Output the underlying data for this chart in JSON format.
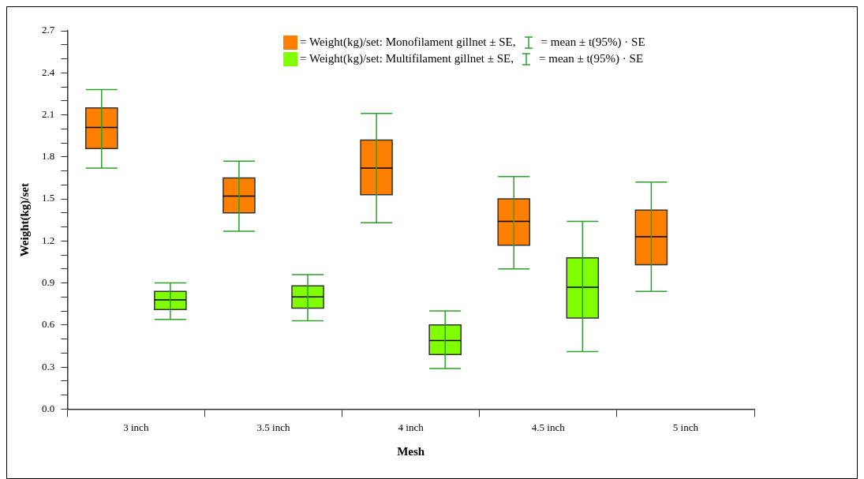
{
  "chart_data": {
    "type": "box",
    "xlabel": "Mesh",
    "ylabel": "Weight(kg)/set",
    "categories": [
      "3 inch",
      "3.5 inch",
      "4 inch",
      "4.5 inch",
      "5 inch"
    ],
    "series": [
      {
        "name": "= Weight(kg)/set: Monofilament gillnet ± SE,",
        "color": "#ff8000",
        "boxes": [
          {
            "low": 1.72,
            "q1": 1.86,
            "median": 2.01,
            "q3": 2.15,
            "high": 2.28
          },
          {
            "low": 1.27,
            "q1": 1.4,
            "median": 1.52,
            "q3": 1.65,
            "high": 1.77
          },
          {
            "low": 1.33,
            "q1": 1.53,
            "median": 1.72,
            "q3": 1.92,
            "high": 2.11
          },
          {
            "low": 1.0,
            "q1": 1.17,
            "median": 1.34,
            "q3": 1.5,
            "high": 1.66
          },
          {
            "low": 0.84,
            "q1": 1.03,
            "median": 1.23,
            "q3": 1.42,
            "high": 1.62
          }
        ]
      },
      {
        "name": "= Weight(kg)/set: Multifilament gillnet ± SE,",
        "color": "#80ff00",
        "boxes": [
          {
            "low": 0.64,
            "q1": 0.71,
            "median": 0.78,
            "q3": 0.84,
            "high": 0.9
          },
          {
            "low": 0.63,
            "q1": 0.72,
            "median": 0.8,
            "q3": 0.88,
            "high": 0.96
          },
          {
            "low": 0.29,
            "q1": 0.39,
            "median": 0.49,
            "q3": 0.6,
            "high": 0.7
          },
          {
            "low": 0.41,
            "q1": 0.65,
            "median": 0.87,
            "q3": 1.08,
            "high": 1.34
          },
          null
        ]
      }
    ],
    "annotations": [
      "= mean ± t(95%) · SE",
      "= mean ± t(95%) · SE"
    ],
    "ylim": [
      0,
      2.7
    ],
    "yticks": [
      {
        "value": 0,
        "label": "0.0"
      },
      {
        "value": 0.1,
        "label": null
      },
      {
        "value": 0.2,
        "label": null
      },
      {
        "value": 0.3,
        "label": "0.3"
      },
      {
        "value": 0.4,
        "label": null
      },
      {
        "value": 0.5,
        "label": null
      },
      {
        "value": 0.6,
        "label": "0.6"
      },
      {
        "value": 0.7,
        "label": null
      },
      {
        "value": 0.8,
        "label": null
      },
      {
        "value": 0.9,
        "label": "0.9"
      },
      {
        "value": 1.0,
        "label": null
      },
      {
        "value": 1.1,
        "label": null
      },
      {
        "value": 1.2,
        "label": "1.2"
      },
      {
        "value": 1.3,
        "label": null
      },
      {
        "value": 1.4,
        "label": null
      },
      {
        "value": 1.5,
        "label": "1.5"
      },
      {
        "value": 1.6,
        "label": null
      },
      {
        "value": 1.7,
        "label": null
      },
      {
        "value": 1.8,
        "label": "1.8"
      },
      {
        "value": 1.9,
        "label": null
      },
      {
        "value": 2.0,
        "label": null
      },
      {
        "value": 2.1,
        "label": "2.1"
      },
      {
        "value": 2.2,
        "label": null
      },
      {
        "value": 2.3,
        "label": null
      },
      {
        "value": 2.4,
        "label": "2.4"
      },
      {
        "value": 2.5,
        "label": null
      },
      {
        "value": 2.6,
        "label": null
      },
      {
        "value": 2.7,
        "label": "2.7"
      }
    ],
    "grid": false,
    "legend": "top"
  }
}
